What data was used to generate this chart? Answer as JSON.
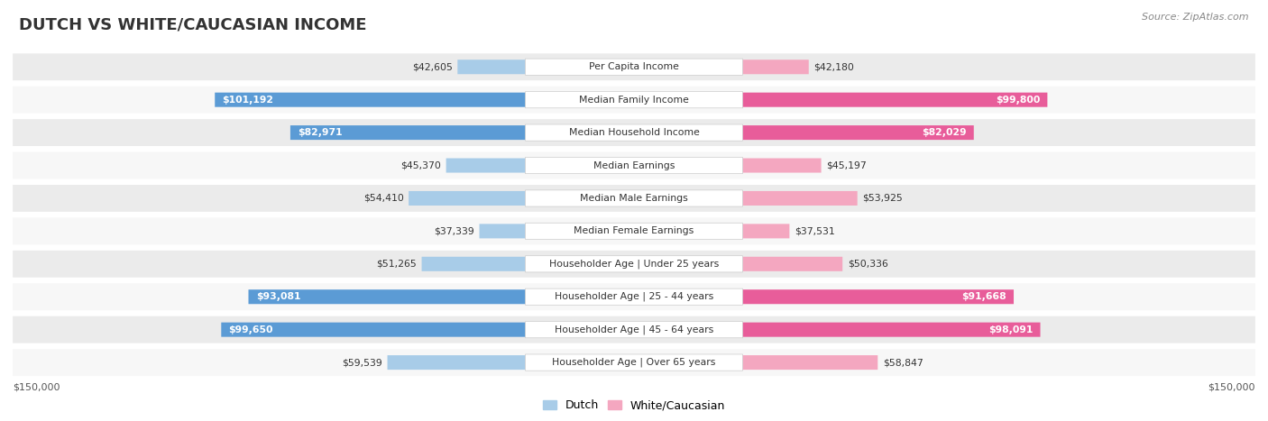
{
  "title": "DUTCH VS WHITE/CAUCASIAN INCOME",
  "source": "Source: ZipAtlas.com",
  "categories": [
    "Per Capita Income",
    "Median Family Income",
    "Median Household Income",
    "Median Earnings",
    "Median Male Earnings",
    "Median Female Earnings",
    "Householder Age | Under 25 years",
    "Householder Age | 25 - 44 years",
    "Householder Age | 45 - 64 years",
    "Householder Age | Over 65 years"
  ],
  "dutch_values": [
    42605,
    101192,
    82971,
    45370,
    54410,
    37339,
    51265,
    93081,
    99650,
    59539
  ],
  "white_values": [
    42180,
    99800,
    82029,
    45197,
    53925,
    37531,
    50336,
    91668,
    98091,
    58847
  ],
  "dutch_labels": [
    "$42,605",
    "$101,192",
    "$82,971",
    "$45,370",
    "$54,410",
    "$37,339",
    "$51,265",
    "$93,081",
    "$99,650",
    "$59,539"
  ],
  "white_labels": [
    "$42,180",
    "$99,800",
    "$82,029",
    "$45,197",
    "$53,925",
    "$37,531",
    "$50,336",
    "$91,668",
    "$98,091",
    "$58,847"
  ],
  "dutch_dark_threshold": 80000,
  "white_dark_threshold": 80000,
  "dutch_color_light": "#a8cce8",
  "dutch_color_dark": "#5b9bd5",
  "white_color_light": "#f4a7c0",
  "white_color_dark": "#e85d9a",
  "max_value": 150000,
  "x_label_left": "$150,000",
  "x_label_right": "$150,000",
  "legend_dutch": "Dutch",
  "legend_white": "White/Caucasian",
  "background_color": "#ffffff",
  "row_bg_odd": "#ebebeb",
  "row_bg_even": "#f7f7f7"
}
